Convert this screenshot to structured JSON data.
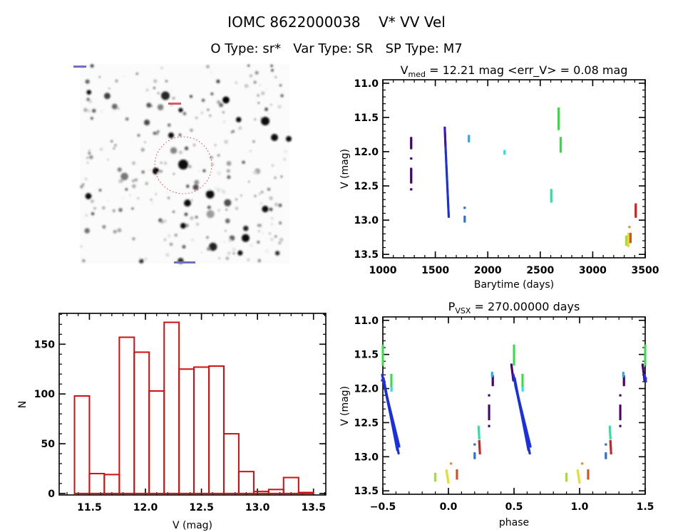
{
  "header": {
    "title": "IOMC 8622000038    V* VV Vel",
    "subtitle": "O Type: sr*   Var Type: SR   SP Type: M7"
  },
  "chart_data": [
    {
      "type": "image",
      "colors": {
        "marker_circle": "#d02020"
      }
    },
    {
      "type": "scatter",
      "title": {
        "main": "V",
        "sub": "med",
        "rest": " = 12.21 mag <err_V> = 0.08 mag"
      },
      "xlabel": "Barytime (days)",
      "ylabel": "V (mag)",
      "xlim": [
        1000,
        3500
      ],
      "ylim": [
        10.95,
        13.55
      ],
      "y_inverted": true,
      "xticks": [
        1000,
        1500,
        2000,
        2500,
        3000,
        3500
      ],
      "xtick_labels": [
        "1000",
        "1500",
        "2000",
        "2500",
        "3000",
        "3500"
      ],
      "yticks": [
        11.0,
        11.5,
        12.0,
        12.5,
        13.0,
        13.5
      ],
      "ytick_labels": [
        "11.0",
        "11.5",
        "12.0",
        "12.5",
        "13.0",
        "13.5"
      ],
      "x_minor": 100,
      "y_minor": 0.1,
      "grid": false,
      "clusters": [
        {
          "color": "#4a0070",
          "x": [
            1270,
            1270
          ],
          "v": [
            11.8,
            11.95
          ]
        },
        {
          "color": "#4a0070",
          "x": [
            1270,
            1270
          ],
          "v": [
            12.1,
            12.1
          ]
        },
        {
          "color": "#4a0070",
          "x": [
            1270,
            1270
          ],
          "v": [
            12.25,
            12.45
          ]
        },
        {
          "color": "#4a0070",
          "x": [
            1270,
            1270
          ],
          "v": [
            12.55,
            12.55
          ]
        },
        {
          "color": "#3a10c0",
          "x": [
            1590,
            1598
          ],
          "v": [
            11.65,
            11.95
          ]
        },
        {
          "color": "#1a30e0",
          "x": [
            1598,
            1628
          ],
          "v": [
            11.95,
            12.95
          ]
        },
        {
          "color": "#2a70d0",
          "x": [
            1780,
            1780
          ],
          "v": [
            12.82,
            12.82
          ]
        },
        {
          "color": "#2a70d0",
          "x": [
            1780,
            1780
          ],
          "v": [
            12.95,
            13.02
          ]
        },
        {
          "color": "#30a8e0",
          "x": [
            1820,
            1820
          ],
          "v": [
            11.77,
            11.85
          ]
        },
        {
          "color": "#30e0e0",
          "x": [
            2160,
            2160
          ],
          "v": [
            11.99,
            12.03
          ]
        },
        {
          "color": "#30e0a0",
          "x": [
            2605,
            2605
          ],
          "v": [
            12.56,
            12.73
          ]
        },
        {
          "color": "#30e040",
          "x": [
            2675,
            2675
          ],
          "v": [
            11.37,
            11.67
          ]
        },
        {
          "color": "#30e040",
          "x": [
            2695,
            2695
          ],
          "v": [
            11.8,
            12.0
          ]
        },
        {
          "color": "#a0e030",
          "x": [
            3320,
            3320
          ],
          "v": [
            13.24,
            13.36
          ]
        },
        {
          "color": "#e0e030",
          "x": [
            3340,
            3340
          ],
          "v": [
            13.2,
            13.38
          ]
        },
        {
          "color": "#e09030",
          "x": [
            3350,
            3350
          ],
          "v": [
            13.1,
            13.1
          ]
        },
        {
          "color": "#d05020",
          "x": [
            3360,
            3360
          ],
          "v": [
            13.2,
            13.32
          ]
        },
        {
          "color": "#d02020",
          "x": [
            3410,
            3410
          ],
          "v": [
            12.77,
            12.95
          ]
        }
      ]
    },
    {
      "type": "bar",
      "subtype": "histogram",
      "xlabel": "V (mag)",
      "ylabel": "N",
      "xlim": [
        11.23,
        13.61
      ],
      "ylim": [
        -1.5,
        181
      ],
      "xticks": [
        11.5,
        12.0,
        12.5,
        13.0,
        13.5
      ],
      "xtick_labels": [
        "11.5",
        "12.0",
        "12.5",
        "13.0",
        "13.5"
      ],
      "yticks": [
        0,
        50,
        100,
        150
      ],
      "ytick_labels": [
        "0",
        "50",
        "100",
        "150"
      ],
      "x_minor": 0.1,
      "y_minor": 10,
      "bin_edges": [
        11.367,
        11.5,
        11.633,
        11.767,
        11.9,
        12.033,
        12.167,
        12.3,
        12.433,
        12.567,
        12.7,
        12.833,
        12.967,
        13.1,
        13.233,
        13.367,
        13.5
      ],
      "counts": [
        98,
        20,
        19,
        157,
        142,
        103,
        172,
        125,
        127,
        128,
        60,
        22,
        2,
        4,
        16,
        1
      ],
      "color": "#d01010",
      "grid": false
    },
    {
      "type": "scatter",
      "title": {
        "main": "P",
        "sub": "VSX",
        "rest": " = 270.00000 days"
      },
      "xlabel": "phase",
      "ylabel": "V (mag)",
      "xlim": [
        -0.5,
        1.5
      ],
      "ylim": [
        10.95,
        13.55
      ],
      "y_inverted": true,
      "xticks": [
        -0.5,
        0.0,
        0.5,
        1.0,
        1.5
      ],
      "xtick_labels": [
        "−0.5",
        "0.0",
        "0.5",
        "1.0",
        "1.5"
      ],
      "yticks": [
        11.0,
        11.5,
        12.0,
        12.5,
        13.0,
        13.5
      ],
      "ytick_labels": [
        "11.0",
        "11.5",
        "12.0",
        "12.5",
        "13.0",
        "13.5"
      ],
      "x_minor": 0.1,
      "y_minor": 0.1,
      "phase_repeat": true,
      "grid": false,
      "clusters": [
        {
          "color": "#4a0070",
          "x": [
            0.48,
            0.495
          ],
          "v": [
            11.65,
            11.88
          ]
        },
        {
          "color": "#1a30e0",
          "x": [
            0.495,
            0.62
          ],
          "v": [
            11.8,
            12.95
          ]
        },
        {
          "color": "#1a30e0",
          "x": [
            0.51,
            0.625
          ],
          "v": [
            11.95,
            12.85
          ]
        },
        {
          "color": "#1a30e0",
          "x": [
            0.505,
            0.61
          ],
          "v": [
            11.85,
            12.9
          ]
        },
        {
          "color": "#30e040",
          "x": [
            0.5,
            0.5
          ],
          "v": [
            11.37,
            11.65
          ]
        },
        {
          "color": "#30e040",
          "x": [
            0.565,
            0.565
          ],
          "v": [
            11.8,
            11.98
          ]
        },
        {
          "color": "#30e0e0",
          "x": [
            0.566,
            0.566
          ],
          "v": [
            11.99,
            12.03
          ]
        },
        {
          "color": "#30e0a0",
          "x": [
            0.23,
            0.235
          ],
          "v": [
            12.56,
            12.73
          ]
        },
        {
          "color": "#d02020",
          "x": [
            0.235,
            0.24
          ],
          "v": [
            12.77,
            12.95
          ]
        },
        {
          "color": "#2a70d0",
          "x": [
            0.2,
            0.2
          ],
          "v": [
            12.82,
            12.82
          ]
        },
        {
          "color": "#2a70d0",
          "x": [
            0.2,
            0.2
          ],
          "v": [
            12.95,
            13.02
          ]
        },
        {
          "color": "#4a0070",
          "x": [
            0.31,
            0.31
          ],
          "v": [
            12.1,
            12.1
          ]
        },
        {
          "color": "#4a0070",
          "x": [
            0.31,
            0.31
          ],
          "v": [
            12.25,
            12.45
          ]
        },
        {
          "color": "#4a0070",
          "x": [
            0.31,
            0.31
          ],
          "v": [
            12.55,
            12.55
          ]
        },
        {
          "color": "#4a0070",
          "x": [
            0.338,
            0.338
          ],
          "v": [
            11.82,
            11.95
          ]
        },
        {
          "color": "#30a8e0",
          "x": [
            0.333,
            0.333
          ],
          "v": [
            11.77,
            11.82
          ]
        },
        {
          "color": "#a0e030",
          "x": [
            0.9,
            0.9
          ],
          "v": [
            13.25,
            13.35
          ]
        },
        {
          "color": "#e0e030",
          "x": [
            0.985,
            1.0
          ],
          "v": [
            13.2,
            13.38
          ]
        },
        {
          "color": "#e09030",
          "x": [
            0.02,
            0.02
          ],
          "v": [
            13.1,
            13.1
          ]
        },
        {
          "color": "#d05020",
          "x": [
            0.065,
            0.065
          ],
          "v": [
            13.2,
            13.32
          ]
        }
      ]
    }
  ]
}
